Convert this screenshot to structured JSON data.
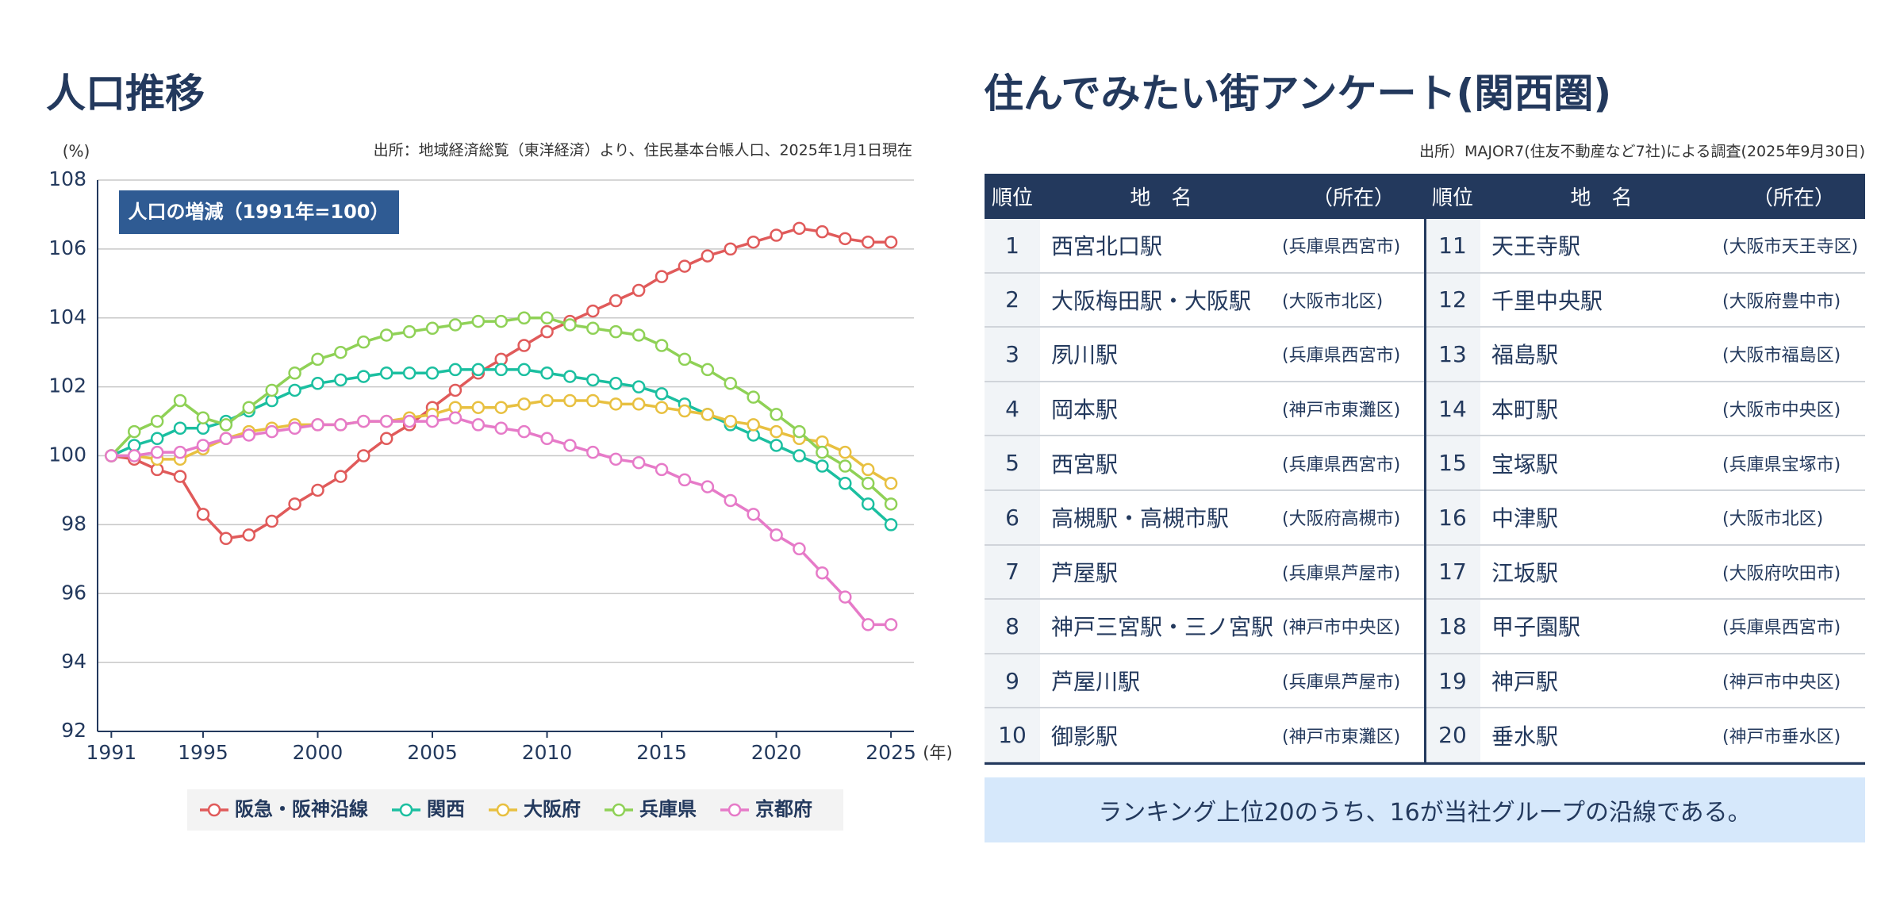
{
  "chart_data": {
    "type": "line",
    "title": "人口推移",
    "subtitle": "出所：地域経済総覧（東洋経済）より、住民基本台帳人口、2025年1月1日現在",
    "annotation": "人口の増減（1991年=100）",
    "y_label": "(%)",
    "x_label": "(年)",
    "x": [
      1991,
      1992,
      1993,
      1994,
      1995,
      1996,
      1997,
      1998,
      1999,
      2000,
      2001,
      2002,
      2003,
      2004,
      2005,
      2006,
      2007,
      2008,
      2009,
      2010,
      2011,
      2012,
      2013,
      2014,
      2015,
      2016,
      2017,
      2018,
      2019,
      2020,
      2021,
      2022,
      2023,
      2024,
      2025
    ],
    "xlim": [
      1990.4,
      2026
    ],
    "xticks": [
      1991,
      1995,
      2000,
      2005,
      2010,
      2015,
      2020,
      2025
    ],
    "ylim": [
      92,
      108
    ],
    "yticks": [
      92,
      94,
      96,
      98,
      100,
      102,
      104,
      106,
      108
    ],
    "grid": true,
    "series": [
      {
        "name": "阪急・阪神沿線",
        "color": "#e05a5a",
        "values": [
          100,
          99.9,
          99.6,
          99.4,
          98.3,
          97.6,
          97.7,
          98.1,
          98.6,
          99.0,
          99.4,
          100.0,
          100.5,
          100.9,
          101.4,
          101.9,
          102.4,
          102.8,
          103.2,
          103.6,
          103.9,
          104.2,
          104.5,
          104.8,
          105.2,
          105.5,
          105.8,
          106.0,
          106.2,
          106.4,
          106.6,
          106.5,
          106.3,
          106.2,
          106.2
        ]
      },
      {
        "name": "関西",
        "color": "#1bbfa0",
        "values": [
          100,
          100.3,
          100.5,
          100.8,
          100.8,
          101.0,
          101.3,
          101.6,
          101.9,
          102.1,
          102.2,
          102.3,
          102.4,
          102.4,
          102.4,
          102.5,
          102.5,
          102.5,
          102.5,
          102.4,
          102.3,
          102.2,
          102.1,
          102.0,
          101.8,
          101.5,
          101.2,
          100.9,
          100.6,
          100.3,
          100.0,
          99.7,
          99.2,
          98.6,
          98.0
        ]
      },
      {
        "name": "大阪府",
        "color": "#e8c040",
        "values": [
          100,
          100.0,
          99.9,
          99.9,
          100.2,
          100.5,
          100.7,
          100.8,
          100.9,
          100.9,
          100.9,
          101.0,
          101.0,
          101.1,
          101.2,
          101.4,
          101.4,
          101.4,
          101.5,
          101.6,
          101.6,
          101.6,
          101.5,
          101.5,
          101.4,
          101.3,
          101.2,
          101.0,
          100.9,
          100.7,
          100.5,
          100.4,
          100.1,
          99.6,
          99.2
        ]
      },
      {
        "name": "兵庫県",
        "color": "#8fd156",
        "values": [
          100,
          100.7,
          101.0,
          101.6,
          101.1,
          100.9,
          101.4,
          101.9,
          102.4,
          102.8,
          103.0,
          103.3,
          103.5,
          103.6,
          103.7,
          103.8,
          103.9,
          103.9,
          104.0,
          104.0,
          103.8,
          103.7,
          103.6,
          103.5,
          103.2,
          102.8,
          102.5,
          102.1,
          101.7,
          101.2,
          100.7,
          100.1,
          99.7,
          99.2,
          98.6
        ]
      },
      {
        "name": "京都府",
        "color": "#e67ac8",
        "values": [
          100,
          100.0,
          100.1,
          100.1,
          100.3,
          100.5,
          100.6,
          100.7,
          100.8,
          100.9,
          100.9,
          101.0,
          101.0,
          101.0,
          101.0,
          101.1,
          100.9,
          100.8,
          100.7,
          100.5,
          100.3,
          100.1,
          99.9,
          99.8,
          99.6,
          99.3,
          99.1,
          98.7,
          98.3,
          97.7,
          97.3,
          96.6,
          95.9,
          95.1,
          95.1
        ]
      }
    ]
  },
  "ranking": {
    "title": "住んでみたい街アンケート(関西圏)",
    "source": "出所）MAJOR7(住友不動産など7社)による調査(2025年9月30日)",
    "header": [
      "順位",
      "地　名",
      "（所在）"
    ],
    "rows": [
      [
        1,
        "西宮北口駅",
        "(兵庫県西宮市)"
      ],
      [
        2,
        "大阪梅田駅・大阪駅",
        "(大阪市北区)"
      ],
      [
        3,
        "夙川駅",
        "(兵庫県西宮市)"
      ],
      [
        4,
        "岡本駅",
        "(神戸市東灘区)"
      ],
      [
        5,
        "西宮駅",
        "(兵庫県西宮市)"
      ],
      [
        6,
        "高槻駅・高槻市駅",
        "(大阪府高槻市)"
      ],
      [
        7,
        "芦屋駅",
        "(兵庫県芦屋市)"
      ],
      [
        8,
        "神戸三宮駅・三ノ宮駅",
        "(神戸市中央区)"
      ],
      [
        9,
        "芦屋川駅",
        "(兵庫県芦屋市)"
      ],
      [
        10,
        "御影駅",
        "(神戸市東灘区)"
      ],
      [
        11,
        "天王寺駅",
        "(大阪市天王寺区)"
      ],
      [
        12,
        "千里中央駅",
        "(大阪府豊中市)"
      ],
      [
        13,
        "福島駅",
        "(大阪市福島区)"
      ],
      [
        14,
        "本町駅",
        "(大阪市中央区)"
      ],
      [
        15,
        "宝塚駅",
        "(兵庫県宝塚市)"
      ],
      [
        16,
        "中津駅",
        "(大阪市北区)"
      ],
      [
        17,
        "江坂駅",
        "(大阪府吹田市)"
      ],
      [
        18,
        "甲子園駅",
        "(兵庫県西宮市)"
      ],
      [
        19,
        "神戸駅",
        "(神戸市中央区)"
      ],
      [
        20,
        "垂水駅",
        "(神戸市垂水区)"
      ]
    ],
    "note": "ランキング上位20のうち、16が当社グループの沿線である。"
  }
}
